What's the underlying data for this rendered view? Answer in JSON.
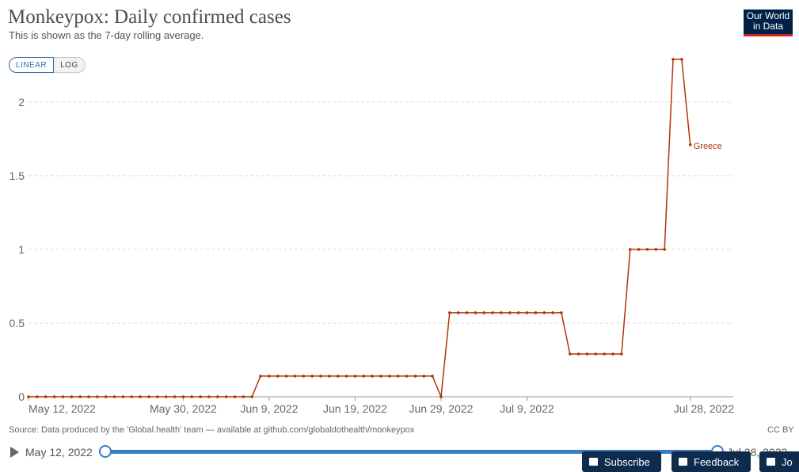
{
  "header": {
    "title": "Monkeypox: Daily confirmed cases",
    "subtitle": "This is shown as the 7-day rolling average."
  },
  "logo": {
    "line1": "Our World",
    "line2": "in Data",
    "bg_color": "#002147",
    "accent_color": "#ce261e"
  },
  "scale_toggle": {
    "linear_label": "LINEAR",
    "log_label": "LOG",
    "selected": "LINEAR"
  },
  "chart_data": {
    "type": "line",
    "title": "Monkeypox: Daily confirmed cases",
    "subtitle": "This is shown as the 7-day rolling average.",
    "x_range": [
      "2022-05-12",
      "2022-08-02"
    ],
    "ylim": [
      0,
      2.3
    ],
    "y_ticks": [
      0,
      0.5,
      1,
      1.5,
      2
    ],
    "y_tick_labels": [
      "0",
      "0.5",
      "1",
      "1.5",
      "2"
    ],
    "x_ticks": [
      "2022-05-12",
      "2022-05-30",
      "2022-06-09",
      "2022-06-19",
      "2022-06-29",
      "2022-07-09",
      "2022-07-28"
    ],
    "x_tick_labels": [
      "May 12, 2022",
      "May 30, 2022",
      "Jun 9, 2022",
      "Jun 19, 2022",
      "Jun 29, 2022",
      "Jul 9, 2022",
      "Jul 28, 2022"
    ],
    "grid": "horizontal dashed",
    "legend": "end-of-line label",
    "series": [
      {
        "name": "Greece",
        "color": "#b13507",
        "segments": [
          {
            "from": "2022-05-12",
            "to": "2022-06-07",
            "value": 0
          },
          {
            "from": "2022-06-08",
            "to": "2022-06-28",
            "value": 0.14
          },
          {
            "from": "2022-06-29",
            "to": "2022-06-29",
            "value": 0
          },
          {
            "from": "2022-06-30",
            "to": "2022-07-13",
            "value": 0.57
          },
          {
            "from": "2022-07-14",
            "to": "2022-07-20",
            "value": 0.29
          },
          {
            "from": "2022-07-21",
            "to": "2022-07-25",
            "value": 1
          },
          {
            "from": "2022-07-26",
            "to": "2022-07-27",
            "value": 2.29
          },
          {
            "from": "2022-07-28",
            "to": "2022-07-28",
            "value": 1.71
          }
        ]
      }
    ]
  },
  "source_text": "Source: Data produced by the 'Global.health' team — available at github.com/globaldothealth/monkeypox",
  "license": "CC BY",
  "timeline": {
    "start_label": "May 12, 2022",
    "end_label": "Jul 28, 2022"
  },
  "footer_buttons": {
    "subscribe": "Subscribe",
    "feedback": "Feedback",
    "extra": "Jo"
  }
}
